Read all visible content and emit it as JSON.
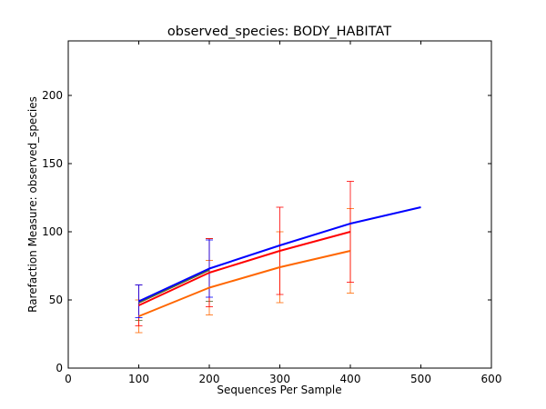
{
  "chart_data": {
    "type": "line",
    "title": "observed_species: BODY_HABITAT",
    "xlabel": "Sequences Per Sample",
    "ylabel": "Rarefaction Measure: observed_species",
    "xlim": [
      0,
      600
    ],
    "ylim": [
      0,
      240
    ],
    "xticks": [
      0,
      100,
      200,
      300,
      400,
      500,
      600
    ],
    "yticks": [
      0,
      50,
      100,
      150,
      200
    ],
    "grid": false,
    "legend": "none",
    "series": [
      {
        "color": "#0000ff",
        "x": [
          100,
          200,
          300,
          400,
          500
        ],
        "y": [
          49,
          73,
          90,
          106,
          118
        ],
        "err": [
          12,
          21,
          0,
          0,
          0
        ]
      },
      {
        "color": "#ff0000",
        "x": [
          100,
          200,
          300,
          400
        ],
        "y": [
          46,
          70,
          86,
          100
        ],
        "err": [
          15,
          25,
          32,
          37
        ]
      },
      {
        "color": "#ff6600",
        "x": [
          100,
          200,
          300,
          400
        ],
        "y": [
          38,
          59,
          74,
          86
        ],
        "err": [
          12,
          20,
          26,
          31
        ]
      },
      {
        "color": "#556b2f",
        "x": [
          100,
          200
        ],
        "y": [
          48,
          72
        ],
        "err": [
          13,
          23
        ]
      }
    ]
  }
}
